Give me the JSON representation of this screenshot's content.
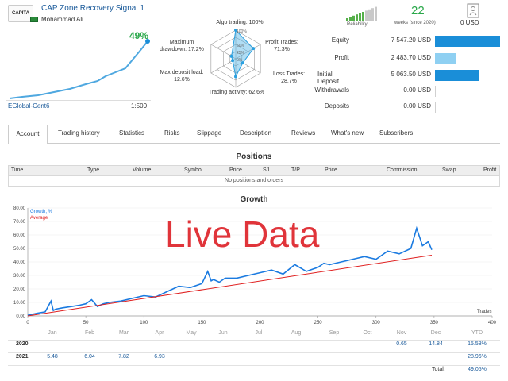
{
  "header": {
    "logo_text": "CAPITA",
    "signal_title": "CAP Zone Recovery Signal 1",
    "author": "Mohammad Ali",
    "growth_pct": "49%",
    "broker": "EGlobal-Cent6",
    "leverage": "1:500"
  },
  "radar": {
    "algo": "Algo trading: 100%",
    "profit_trades": "Profit Trades:\n71.3%",
    "loss_trades": "Loss Trades: 28.7%",
    "activity": "Trading activity: 62.6%",
    "max_load": "Max deposit load:\n12.6%",
    "max_dd": "Maximum\ndrawdown: 17.2%",
    "ticks": [
      "100%",
      "50%",
      "25%",
      "0%"
    ],
    "values": [
      1.0,
      0.713,
      0.287,
      0.626,
      0.126,
      0.172
    ]
  },
  "summary": {
    "reliability_label": "Reliability",
    "reliability_level": 0.6,
    "weeks_value": "22",
    "weeks_label": "weeks (since 2020)",
    "subscribers_value": "0 USD"
  },
  "stats": [
    {
      "label": "Equity",
      "value": "7 547.20 USD",
      "fill": 1.0,
      "color": "#1a8ed8"
    },
    {
      "label": "Profit",
      "value": "2 483.70 USD",
      "fill": 0.33,
      "color": "#8fd0f2"
    },
    {
      "label": "Initial Deposit",
      "value": "5 063.50 USD",
      "fill": 0.67,
      "color": "#1a8ed8"
    },
    {
      "label": "Withdrawals",
      "value": "0.00 USD",
      "fill": 0,
      "color": "#1a8ed8"
    },
    {
      "label": "Deposits",
      "value": "0.00 USD",
      "fill": 0,
      "color": "#1a8ed8"
    }
  ],
  "tabs": [
    "Account",
    "Trading history",
    "Statistics",
    "Risks",
    "Slippage",
    "Description",
    "Reviews",
    "What's new",
    "Subscribers"
  ],
  "positions": {
    "title": "Positions",
    "columns": [
      "Time",
      "Type",
      "Volume",
      "Symbol",
      "Price",
      "S/L",
      "T/P",
      "Price",
      "Commission",
      "Swap",
      "Profit"
    ],
    "empty_text": "No positions and orders"
  },
  "growth": {
    "title": "Growth",
    "overlay_text": "Live Data",
    "legend_growth": "Growth, %",
    "legend_average": "Average",
    "x_axis_label": "Trades"
  },
  "chart_data": {
    "type": "line",
    "title": "Growth",
    "xlabel": "Trades",
    "ylabel": "",
    "xlim": [
      0,
      400
    ],
    "ylim": [
      0,
      80
    ],
    "x_ticks": [
      0,
      50,
      100,
      150,
      200,
      250,
      300,
      350,
      400
    ],
    "y_ticks": [
      "0.00",
      "10.00",
      "20.00",
      "30.00",
      "40.00",
      "50.00",
      "60.00",
      "70.00",
      "80.00"
    ],
    "month_labels": [
      "Jan",
      "Feb",
      "Mar",
      "Apr",
      "May",
      "Jun",
      "Jul",
      "Aug",
      "Sep",
      "Oct",
      "Nov",
      "Dec"
    ],
    "series": [
      {
        "name": "Growth, %",
        "color": "#1a7ae0",
        "x": [
          0,
          8,
          15,
          20,
          22,
          24,
          30,
          38,
          45,
          50,
          55,
          60,
          65,
          70,
          80,
          90,
          100,
          110,
          120,
          125,
          130,
          140,
          150,
          155,
          158,
          160,
          165,
          170,
          180,
          190,
          200,
          210,
          220,
          230,
          240,
          250,
          255,
          260,
          270,
          280,
          290,
          300,
          310,
          320,
          330,
          335,
          340,
          345,
          348
        ],
        "y": [
          0.5,
          2,
          3,
          11,
          4,
          5,
          6,
          7,
          8,
          9,
          12,
          7,
          9,
          10,
          11,
          13,
          15,
          14,
          18,
          20,
          22,
          21,
          24,
          33,
          26,
          27,
          25,
          28,
          28,
          30,
          32,
          34,
          31,
          38,
          33,
          36,
          39,
          38,
          40,
          42,
          44,
          42,
          48,
          46,
          50,
          65,
          52,
          55,
          49
        ]
      },
      {
        "name": "Average",
        "color": "#e02020",
        "x": [
          0,
          348
        ],
        "y": [
          0,
          45
        ]
      }
    ]
  },
  "year_table": {
    "months": [
      "Jan",
      "Feb",
      "Mar",
      "Apr",
      "May",
      "Jun",
      "Jul",
      "Aug",
      "Sep",
      "Oct",
      "Nov",
      "Dec",
      "YTD"
    ],
    "rows": [
      {
        "year": "2020",
        "values": {
          "Nov": "0.65",
          "Dec": "14.84"
        },
        "ytd": "15.58%"
      },
      {
        "year": "2021",
        "values": {
          "Jan": "5.48",
          "Feb": "6.04",
          "Mar": "7.82",
          "Apr": "6.93"
        },
        "ytd": "28.96%"
      }
    ],
    "total_label": "Total:",
    "total_value": "49.05%"
  }
}
